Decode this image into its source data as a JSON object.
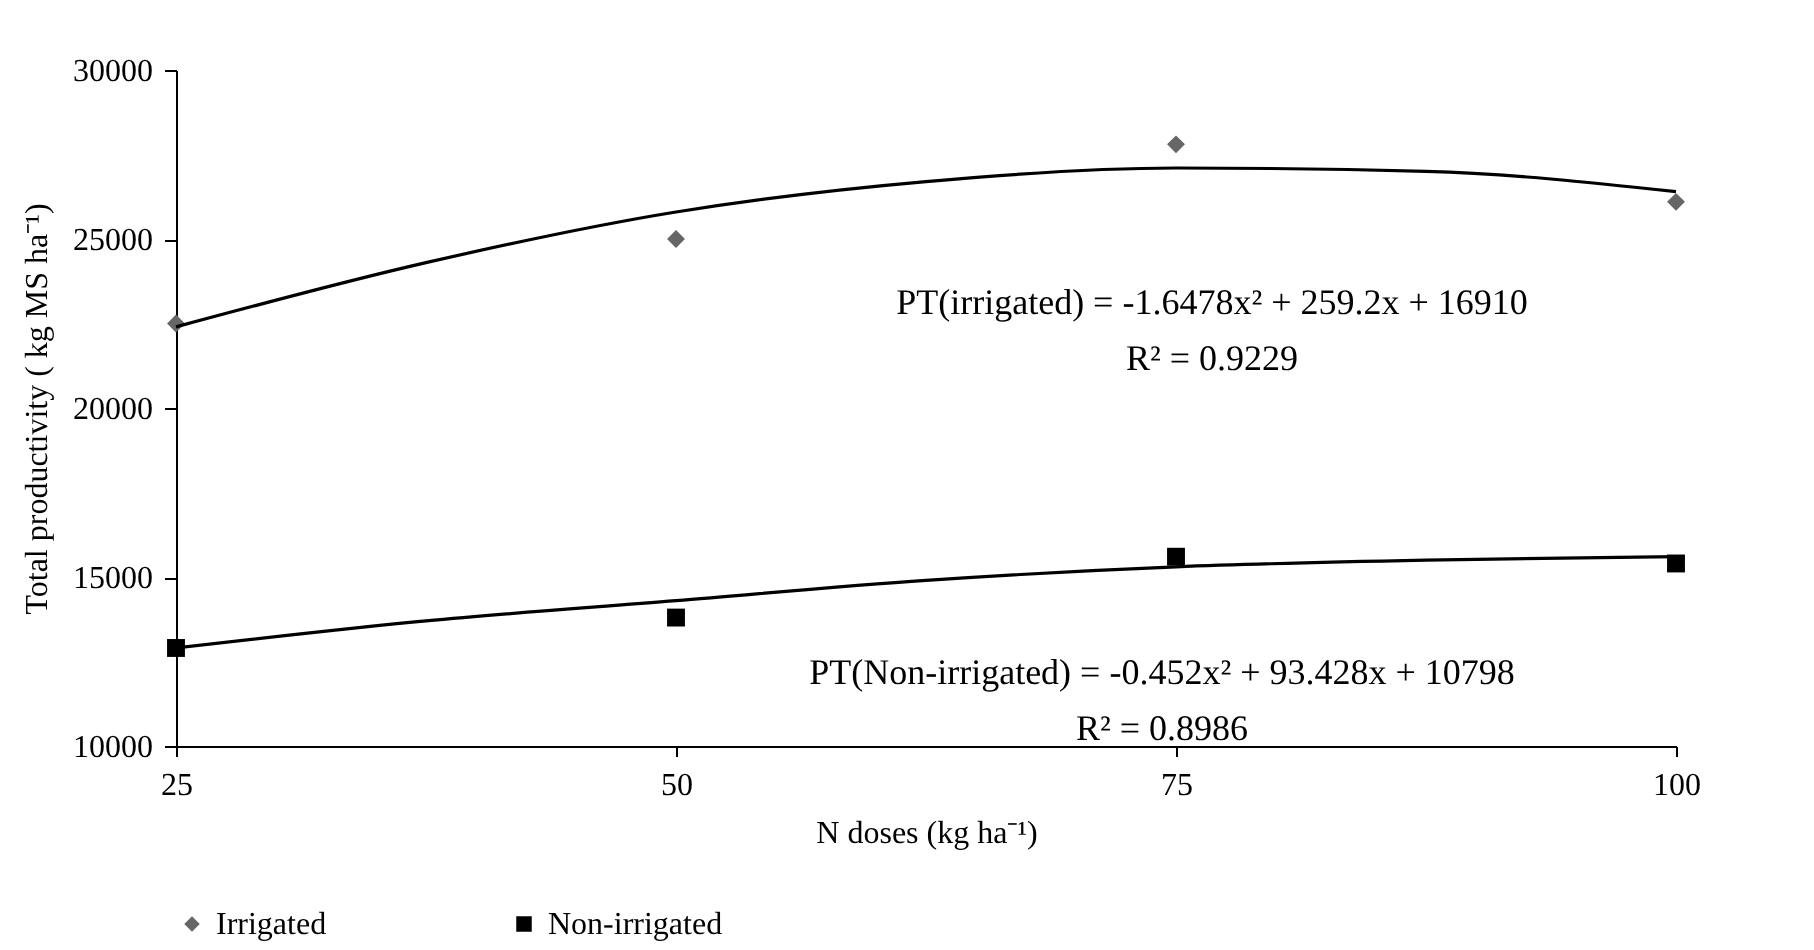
{
  "chart_data": {
    "type": "scatter",
    "xlabel": "N doses (kg ha⁻¹)",
    "ylabel": "Total productivity ( kg MS ha⁻¹)",
    "x": [
      25,
      50,
      75,
      100
    ],
    "series": [
      {
        "name": "Irrigated",
        "color": "#666666",
        "marker": "diamond",
        "values": [
          22500,
          25000,
          27800,
          26100
        ]
      },
      {
        "name": "Non-irrigated",
        "color": "#000000",
        "marker": "square",
        "values": [
          12900,
          13800,
          15600,
          15400
        ]
      },
      {
        "type": "line",
        "color": "#000000",
        "marker": "none",
        "x": [
          25,
          37.5,
          50,
          62.5,
          75,
          87.5,
          100
        ],
        "values": [
          22400,
          24300,
          25800,
          26700,
          27100,
          27000,
          26400
        ]
      },
      {
        "type": "line",
        "color": "#000000",
        "marker": "none",
        "x": [
          25,
          37.5,
          50,
          62.5,
          75,
          87.5,
          100
        ],
        "values": [
          12900,
          13700,
          14300,
          14900,
          15300,
          15500,
          15600
        ]
      }
    ],
    "annotations": [
      "PT(irrigated) = -1.6478x² + 259.2x + 16910",
      "R² = 0.9229",
      "PT(Non-irrigated) = -0.452x² + 93.428x + 10798",
      "R² = 0.8986"
    ],
    "xlim": [
      25,
      100
    ],
    "xticks": [
      25,
      50,
      75,
      100
    ],
    "ylim": [
      10000,
      30000
    ],
    "yticks": [
      10000,
      15000,
      20000,
      25000,
      30000
    ],
    "grid": false,
    "legend": "bottom",
    "line_style": "solid"
  }
}
